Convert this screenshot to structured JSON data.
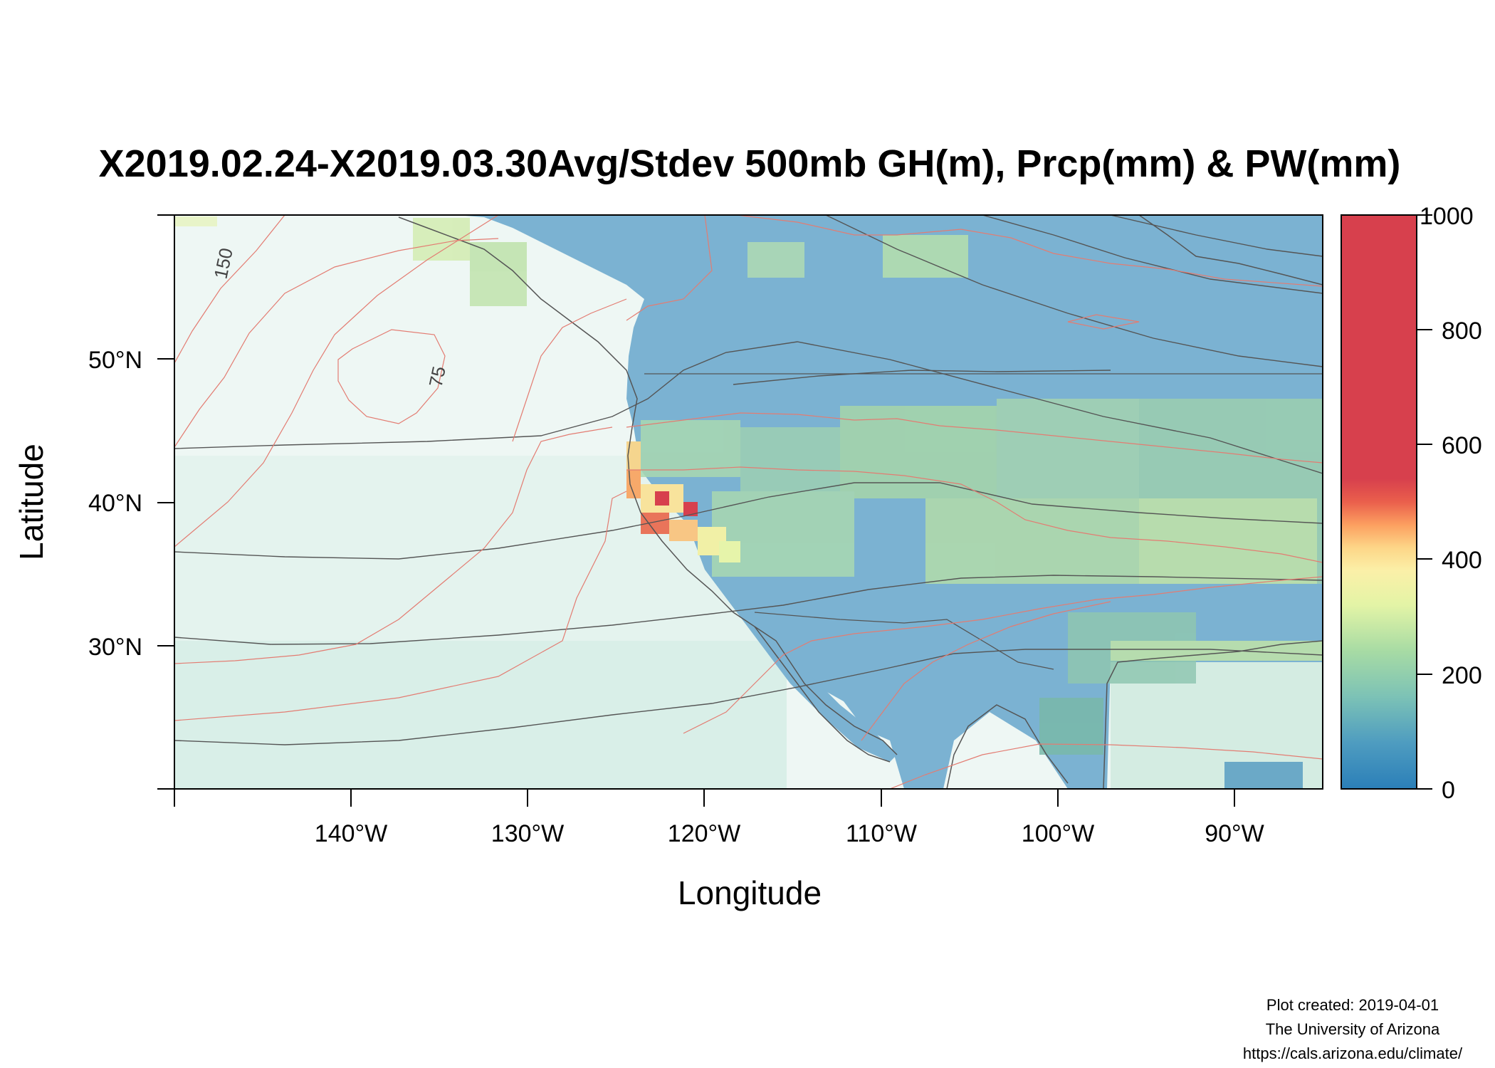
{
  "title": "X2019.02.24-X2019.03.30Avg/Stdev 500mb GH(m), Prcp(mm) & PW(mm)",
  "axes": {
    "xlabel": "Longitude",
    "ylabel": "Latitude",
    "xticks": [
      "140°W",
      "130°W",
      "120°W",
      "110°W",
      "100°W",
      "90°W"
    ],
    "yticks": [
      "50°N",
      "40°N",
      "30°N"
    ]
  },
  "colorbar": {
    "ticks": [
      "1000",
      "800",
      "600",
      "400",
      "200",
      "0"
    ],
    "range": [
      0,
      1000
    ],
    "colors": [
      "#2b83ba",
      "#6fb4c6",
      "#9dd3a7",
      "#c7e7a9",
      "#eef8b4",
      "#fee798",
      "#fdbb6c",
      "#f7844e",
      "#e4514b",
      "#d7404d",
      "#d7404d"
    ]
  },
  "contour_labels": {
    "a": "150",
    "b": "75"
  },
  "credits": {
    "line1": "Plot created: 2019-04-01",
    "line2": "The University of Arizona",
    "line3": "https://cals.arizona.edu/climate/"
  },
  "map": {
    "extent": {
      "lon": [
        -150,
        -85
      ],
      "lat": [
        20,
        60
      ]
    },
    "ocean_color": "#eaf6f2",
    "land_base_color": "#79b0cf",
    "coastline_color": "#555555",
    "gh_contour_color": "#555555",
    "pw_contour_color": "#e37c72"
  }
}
